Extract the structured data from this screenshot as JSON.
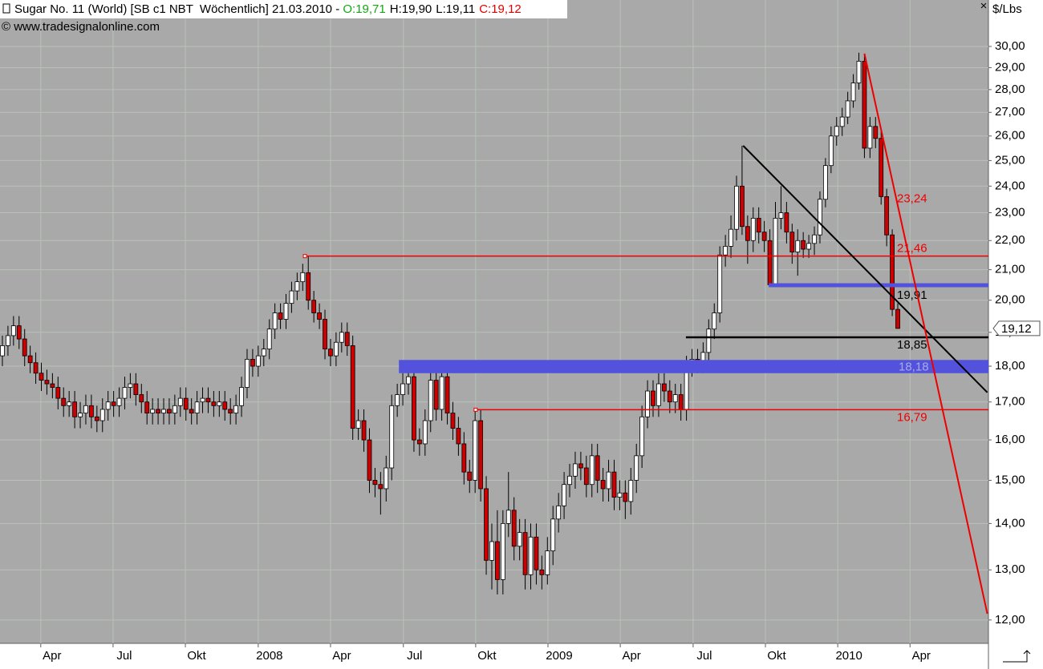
{
  "chart_data": {
    "type": "candlestick",
    "title": "Sugar No. 11 (World) [SB c1 NBT  Wöchentlich] 21.03.2010 - ",
    "ohlc_labels": [
      "O:19,71",
      "H:19,90",
      "L:19,11",
      "C:19,12"
    ],
    "ohlc_label_colors": [
      "#13a813",
      "#000000",
      "#000000",
      "#e00000"
    ],
    "source": "© www.tradesignalonline.com",
    "y_unit": "$/Lbs",
    "last_price_label": "19,12",
    "up_color": "#ffffff",
    "down_color": "#cc0000",
    "log_y": true,
    "grid": true,
    "ylim": [
      11.56,
      32.31
    ],
    "yticks": [
      {
        "value": 12,
        "label": "12,00"
      },
      {
        "value": 13,
        "label": "13,00"
      },
      {
        "value": 14,
        "label": "14,00"
      },
      {
        "value": 15,
        "label": "15,00"
      },
      {
        "value": 16,
        "label": "16,00"
      },
      {
        "value": 17,
        "label": "17,00"
      },
      {
        "value": 18,
        "label": "18,00"
      },
      {
        "value": 19,
        "label": "19,00"
      },
      {
        "value": 20,
        "label": "20,00"
      },
      {
        "value": 21,
        "label": "21,00"
      },
      {
        "value": 22,
        "label": "22,00"
      },
      {
        "value": 23,
        "label": "23,00"
      },
      {
        "value": 24,
        "label": "24,00"
      },
      {
        "value": 25,
        "label": "25,00"
      },
      {
        "value": 26,
        "label": "26,00"
      },
      {
        "value": 27,
        "label": "27,00"
      },
      {
        "value": 28,
        "label": "28,00"
      },
      {
        "value": 29,
        "label": "29,00"
      },
      {
        "value": 30,
        "label": "30,00"
      }
    ],
    "xlim": [
      -0.43,
      177.3
    ],
    "xticks": [
      {
        "value": 6.9,
        "label": "Apr"
      },
      {
        "value": 19.9,
        "label": "Jul"
      },
      {
        "value": 32.9,
        "label": "Okt"
      },
      {
        "value": 46.0,
        "label": "2008"
      },
      {
        "value": 59.0,
        "label": "Apr"
      },
      {
        "value": 72.1,
        "label": "Jul"
      },
      {
        "value": 85.1,
        "label": "Okt"
      },
      {
        "value": 98.1,
        "label": "2009"
      },
      {
        "value": 111.1,
        "label": "Apr"
      },
      {
        "value": 124.2,
        "label": "Jul"
      },
      {
        "value": 137.2,
        "label": "Okt"
      },
      {
        "value": 150.2,
        "label": "2010"
      },
      {
        "value": 163.2,
        "label": "Apr"
      }
    ],
    "categories": [
      null,
      null,
      null,
      null,
      null,
      null,
      null,
      null,
      null,
      null,
      null,
      null,
      null,
      null,
      null,
      null,
      null,
      null,
      null,
      null,
      null,
      null,
      null,
      null,
      null,
      null,
      null,
      null,
      null,
      null,
      null,
      null,
      null,
      null,
      null,
      null,
      null,
      null,
      null,
      null,
      null,
      null,
      null,
      null,
      null,
      null,
      null,
      null,
      null,
      null,
      null,
      null,
      null,
      null,
      null,
      null,
      null,
      null,
      null,
      null,
      null,
      null,
      null,
      null,
      null,
      null,
      null,
      null,
      null,
      null,
      null,
      null,
      null,
      null,
      null,
      null,
      null,
      null,
      null,
      null,
      null,
      null,
      null,
      null,
      null,
      null,
      null,
      null,
      null,
      null,
      null,
      null,
      null,
      null,
      null,
      null,
      null,
      null,
      null,
      null,
      null,
      null,
      null,
      null,
      null,
      null,
      null,
      null,
      null,
      null,
      null,
      null,
      null,
      null,
      null,
      null,
      null,
      null,
      null,
      null,
      null,
      null,
      null,
      null,
      null,
      null,
      null,
      null,
      null,
      null,
      null,
      null,
      null,
      null,
      null,
      null,
      null,
      null,
      null,
      null,
      null,
      null,
      null,
      null,
      null,
      null,
      null,
      null,
      null,
      null,
      null,
      null,
      null,
      null,
      null,
      null,
      null,
      null,
      null,
      null,
      null,
      null
    ],
    "open": [
      18.3,
      18.6,
      18.9,
      19.2,
      18.8,
      18.3,
      18.1,
      17.8,
      17.6,
      17.5,
      17.4,
      17.1,
      16.9,
      17.0,
      16.6,
      16.7,
      16.9,
      16.6,
      16.5,
      16.8,
      17.0,
      16.9,
      17.1,
      17.4,
      17.5,
      17.2,
      17.0,
      16.7,
      16.8,
      16.7,
      16.8,
      16.7,
      16.9,
      17.1,
      16.8,
      16.7,
      17.0,
      17.1,
      17.0,
      16.9,
      17.0,
      16.8,
      16.7,
      16.9,
      17.4,
      18.2,
      18.0,
      18.3,
      18.5,
      19.1,
      19.6,
      19.4,
      19.9,
      20.3,
      20.6,
      20.9,
      20.0,
      19.6,
      19.4,
      18.5,
      18.3,
      18.7,
      19.0,
      18.6,
      16.3,
      16.5,
      16.0,
      15.0,
      14.9,
      14.8,
      15.3,
      16.9,
      17.2,
      17.5,
      17.7,
      16.0,
      15.9,
      16.5,
      17.6,
      16.8,
      17.7,
      16.7,
      16.3,
      15.9,
      15.2,
      15.0,
      16.5,
      14.8,
      13.2,
      13.6,
      12.8,
      14.0,
      14.3,
      13.5,
      13.8,
      12.9,
      13.7,
      13.0,
      12.9,
      13.4,
      14.1,
      14.4,
      14.9,
      15.1,
      15.4,
      15.3,
      14.9,
      15.6,
      15.0,
      14.8,
      15.2,
      14.6,
      14.7,
      14.5,
      15.0,
      15.6,
      16.6,
      17.3,
      16.9,
      17.5,
      17.3,
      17.0,
      17.2,
      16.8,
      18.0,
      18.2,
      18.1,
      18.4,
      19.1,
      19.6,
      21.5,
      21.8,
      22.4,
      24.0,
      22.5,
      22.0,
      22.8,
      22.3,
      22.0,
      20.5,
      22.8,
      23.0,
      22.3,
      21.6,
      22.0,
      21.7,
      21.9,
      22.2,
      23.5,
      24.8,
      26.0,
      26.4,
      26.8,
      27.5,
      28.3,
      29.3,
      25.5,
      26.4,
      25.9,
      23.6,
      22.2,
      19.71
    ],
    "high": [
      18.9,
      19.2,
      19.5,
      19.5,
      19.1,
      18.6,
      18.4,
      18.1,
      17.9,
      17.8,
      17.7,
      17.4,
      17.3,
      17.3,
      17.0,
      17.2,
      17.2,
      16.9,
      17.1,
      17.3,
      17.3,
      17.4,
      17.7,
      17.8,
      17.8,
      17.5,
      17.3,
      17.1,
      17.1,
      17.1,
      17.1,
      17.2,
      17.4,
      17.4,
      17.1,
      17.3,
      17.4,
      17.4,
      17.3,
      17.3,
      17.3,
      17.1,
      17.2,
      17.7,
      18.5,
      18.5,
      18.6,
      18.8,
      19.4,
      19.9,
      19.9,
      20.2,
      20.6,
      20.9,
      21.2,
      21.46,
      20.3,
      19.9,
      19.7,
      18.8,
      19.0,
      19.3,
      19.3,
      18.9,
      16.8,
      16.8,
      16.3,
      15.3,
      15.2,
      15.6,
      17.2,
      17.5,
      17.8,
      18.1,
      18.0,
      16.3,
      16.8,
      17.9,
      17.9,
      18.0,
      18.0,
      17.0,
      16.6,
      16.2,
      15.5,
      16.8,
      16.8,
      15.1,
      14.0,
      14.3,
      14.3,
      15.2,
      14.6,
      14.1,
      14.1,
      14.0,
      14.0,
      13.3,
      13.7,
      14.4,
      14.7,
      15.2,
      15.4,
      15.7,
      15.7,
      15.6,
      15.9,
      15.9,
      15.3,
      15.5,
      15.5,
      15.0,
      15.0,
      15.3,
      15.9,
      16.9,
      17.6,
      17.6,
      17.8,
      17.8,
      17.6,
      17.5,
      17.5,
      18.3,
      18.5,
      18.5,
      18.7,
      19.4,
      19.9,
      21.8,
      22.2,
      22.9,
      24.4,
      25.6,
      22.9,
      23.2,
      23.2,
      22.7,
      22.4,
      23.4,
      24.0,
      23.4,
      22.6,
      22.4,
      22.3,
      22.2,
      22.5,
      23.8,
      25.1,
      26.4,
      26.8,
      27.2,
      27.9,
      28.7,
      29.7,
      29.6,
      26.8,
      26.8,
      26.2,
      23.9,
      22.4,
      19.9
    ],
    "low": [
      18.0,
      18.3,
      18.6,
      18.5,
      18.0,
      17.8,
      17.5,
      17.3,
      17.2,
      17.1,
      16.8,
      16.6,
      16.6,
      16.3,
      16.3,
      16.4,
      16.3,
      16.2,
      16.2,
      16.5,
      16.6,
      16.6,
      16.8,
      17.1,
      16.9,
      16.7,
      16.4,
      16.4,
      16.4,
      16.4,
      16.4,
      16.4,
      16.6,
      16.5,
      16.4,
      16.4,
      16.7,
      16.7,
      16.6,
      16.6,
      16.5,
      16.4,
      16.4,
      16.6,
      17.1,
      17.7,
      17.7,
      18.0,
      18.2,
      18.8,
      19.1,
      19.1,
      19.6,
      20.0,
      20.3,
      19.7,
      19.3,
      19.1,
      18.2,
      18.0,
      18.0,
      18.4,
      18.3,
      16.0,
      16.0,
      15.7,
      14.7,
      14.6,
      14.2,
      14.5,
      15.0,
      16.6,
      16.9,
      17.2,
      15.7,
      15.6,
      15.6,
      16.2,
      16.5,
      16.5,
      16.4,
      16.0,
      15.6,
      14.9,
      14.7,
      14.7,
      14.5,
      12.9,
      12.6,
      12.5,
      12.5,
      13.7,
      13.2,
      13.2,
      12.6,
      12.6,
      12.7,
      12.6,
      12.7,
      13.1,
      13.8,
      14.1,
      14.6,
      14.8,
      15.0,
      14.6,
      14.6,
      14.7,
      14.5,
      14.5,
      14.3,
      14.3,
      14.1,
      14.2,
      14.7,
      15.3,
      16.3,
      16.6,
      16.6,
      17.0,
      16.7,
      16.7,
      16.5,
      16.5,
      17.7,
      17.8,
      17.8,
      18.1,
      18.8,
      19.3,
      21.1,
      21.4,
      22.0,
      22.2,
      21.2,
      21.6,
      21.9,
      21.6,
      20.5,
      20.5,
      22.4,
      21.9,
      21.2,
      20.8,
      21.4,
      21.4,
      21.5,
      21.9,
      23.2,
      24.5,
      25.6,
      26.0,
      26.5,
      27.2,
      28.0,
      25.1,
      25.1,
      25.5,
      23.3,
      21.8,
      19.5,
      19.11
    ],
    "close": [
      18.6,
      18.9,
      19.2,
      18.8,
      18.3,
      18.1,
      17.8,
      17.6,
      17.5,
      17.4,
      17.1,
      16.9,
      17.0,
      16.6,
      16.7,
      16.9,
      16.6,
      16.5,
      16.8,
      17.0,
      16.9,
      17.1,
      17.4,
      17.5,
      17.2,
      17.0,
      16.7,
      16.8,
      16.7,
      16.8,
      16.7,
      16.9,
      17.1,
      16.8,
      16.7,
      17.0,
      17.1,
      17.0,
      16.9,
      17.0,
      16.8,
      16.7,
      16.9,
      17.4,
      18.2,
      18.0,
      18.3,
      18.5,
      19.1,
      19.6,
      19.4,
      19.9,
      20.3,
      20.6,
      20.9,
      20.0,
      19.6,
      19.4,
      18.5,
      18.3,
      18.7,
      19.0,
      18.6,
      16.3,
      16.5,
      16.0,
      15.0,
      14.9,
      14.8,
      15.3,
      16.9,
      17.2,
      17.5,
      17.7,
      16.0,
      15.9,
      16.5,
      17.6,
      16.8,
      17.7,
      16.7,
      16.3,
      15.9,
      15.2,
      15.0,
      16.5,
      14.8,
      13.2,
      13.6,
      12.8,
      14.0,
      14.3,
      13.5,
      13.8,
      12.9,
      13.7,
      13.0,
      12.9,
      13.4,
      14.1,
      14.4,
      14.9,
      15.1,
      15.4,
      15.3,
      14.9,
      15.6,
      15.0,
      14.8,
      15.2,
      14.6,
      14.7,
      14.5,
      15.0,
      15.6,
      16.6,
      17.3,
      16.9,
      17.5,
      17.3,
      17.0,
      17.2,
      16.8,
      18.0,
      18.2,
      18.1,
      18.4,
      19.1,
      19.6,
      21.5,
      21.8,
      22.4,
      24.0,
      22.5,
      22.0,
      22.8,
      22.3,
      22.0,
      20.5,
      22.8,
      23.0,
      22.3,
      21.6,
      22.0,
      21.7,
      21.9,
      22.2,
      23.5,
      24.8,
      26.0,
      26.4,
      26.8,
      27.5,
      28.3,
      29.3,
      25.5,
      26.4,
      25.9,
      23.6,
      22.2,
      19.71,
      19.12
    ],
    "levels": [
      {
        "value": 21.46,
        "label": "21,46",
        "color": "#ee0000",
        "start": 54.4,
        "label_position": "above"
      },
      {
        "value": 18.85,
        "label": "18,85",
        "color": "#000000",
        "start": 122.9,
        "label_position": "below"
      },
      {
        "value": 16.79,
        "label": "16,79",
        "color": "#ee0000",
        "start": 85.1,
        "label_position": "below"
      }
    ],
    "bands": [
      {
        "high": 18.18,
        "low": 17.8,
        "label": "18,18",
        "color": "#5252dc",
        "start": 71.3
      },
      {
        "high": 20.55,
        "low": 20.42,
        "color": "#5252dc",
        "start": 137.8
      }
    ],
    "trendlines": [
      {
        "x": [
          133.2,
          177.1
        ],
        "values": [
          25.6,
          17.26
        ],
        "color": "#000000",
        "label_value": 19.91,
        "label": "19,91"
      },
      {
        "x": [
          155.0,
          177.1
        ],
        "values": [
          29.66,
          12.12
        ],
        "color": "#ee0000",
        "label_value": 23.24,
        "label": "23,24"
      }
    ]
  }
}
